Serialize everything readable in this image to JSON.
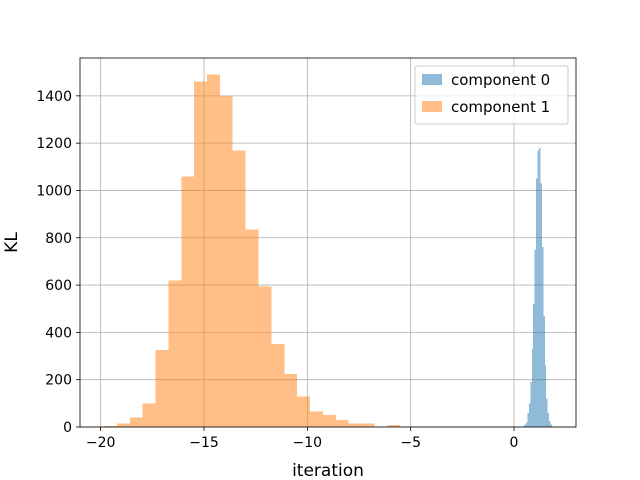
{
  "chart_data": {
    "type": "bar",
    "title": "",
    "xlabel": "iteration",
    "ylabel": "KL",
    "xlim": [
      -21.0,
      3.0
    ],
    "ylim": [
      0,
      1560
    ],
    "xticks": [
      -20,
      -15,
      -10,
      -5,
      0
    ],
    "yticks": [
      0,
      200,
      400,
      600,
      800,
      1000,
      1200,
      1400
    ],
    "grid": true,
    "legend_position": "top-right",
    "series": [
      {
        "name": "component 0",
        "color": "#1f77b4",
        "alpha": 0.5,
        "bins": [
          {
            "x0": 0.44,
            "x1": 0.51,
            "y": 5
          },
          {
            "x0": 0.51,
            "x1": 0.58,
            "y": 10
          },
          {
            "x0": 0.58,
            "x1": 0.65,
            "y": 20
          },
          {
            "x0": 0.65,
            "x1": 0.72,
            "y": 60
          },
          {
            "x0": 0.72,
            "x1": 0.79,
            "y": 100
          },
          {
            "x0": 0.79,
            "x1": 0.86,
            "y": 190
          },
          {
            "x0": 0.86,
            "x1": 0.93,
            "y": 330
          },
          {
            "x0": 0.93,
            "x1": 1.0,
            "y": 520
          },
          {
            "x0": 1.0,
            "x1": 1.07,
            "y": 750
          },
          {
            "x0": 1.07,
            "x1": 1.14,
            "y": 1050
          },
          {
            "x0": 1.14,
            "x1": 1.21,
            "y": 1170
          },
          {
            "x0": 1.21,
            "x1": 1.28,
            "y": 1180
          },
          {
            "x0": 1.28,
            "x1": 1.35,
            "y": 1030
          },
          {
            "x0": 1.35,
            "x1": 1.42,
            "y": 760
          },
          {
            "x0": 1.42,
            "x1": 1.49,
            "y": 470
          },
          {
            "x0": 1.49,
            "x1": 1.56,
            "y": 260
          },
          {
            "x0": 1.56,
            "x1": 1.63,
            "y": 120
          },
          {
            "x0": 1.63,
            "x1": 1.7,
            "y": 60
          },
          {
            "x0": 1.7,
            "x1": 1.77,
            "y": 25
          },
          {
            "x0": 1.77,
            "x1": 1.84,
            "y": 10
          }
        ]
      },
      {
        "name": "component 1",
        "color": "#ff7f0e",
        "alpha": 0.5,
        "bins": [
          {
            "x0": -19.84,
            "x1": -19.22,
            "y": 5
          },
          {
            "x0": -19.22,
            "x1": -18.59,
            "y": 15
          },
          {
            "x0": -18.59,
            "x1": -17.97,
            "y": 40
          },
          {
            "x0": -17.97,
            "x1": -17.35,
            "y": 100
          },
          {
            "x0": -17.35,
            "x1": -16.72,
            "y": 325
          },
          {
            "x0": -16.72,
            "x1": -16.1,
            "y": 620
          },
          {
            "x0": -16.1,
            "x1": -15.48,
            "y": 1060
          },
          {
            "x0": -15.48,
            "x1": -14.85,
            "y": 1460
          },
          {
            "x0": -14.85,
            "x1": -14.23,
            "y": 1490
          },
          {
            "x0": -14.23,
            "x1": -13.61,
            "y": 1400
          },
          {
            "x0": -13.61,
            "x1": -12.98,
            "y": 1170
          },
          {
            "x0": -12.98,
            "x1": -12.36,
            "y": 835
          },
          {
            "x0": -12.36,
            "x1": -11.74,
            "y": 595
          },
          {
            "x0": -11.74,
            "x1": -11.11,
            "y": 350
          },
          {
            "x0": -11.11,
            "x1": -10.49,
            "y": 225
          },
          {
            "x0": -10.49,
            "x1": -9.87,
            "y": 130
          },
          {
            "x0": -9.87,
            "x1": -9.24,
            "y": 65
          },
          {
            "x0": -9.24,
            "x1": -8.62,
            "y": 50
          },
          {
            "x0": -8.62,
            "x1": -8.0,
            "y": 30
          },
          {
            "x0": -8.0,
            "x1": -7.38,
            "y": 15
          },
          {
            "x0": -7.38,
            "x1": -6.75,
            "y": 15
          },
          {
            "x0": -6.75,
            "x1": -6.13,
            "y": 3
          },
          {
            "x0": -6.13,
            "x1": -5.51,
            "y": 8
          },
          {
            "x0": -5.51,
            "x1": -4.88,
            "y": 2
          }
        ]
      }
    ]
  }
}
